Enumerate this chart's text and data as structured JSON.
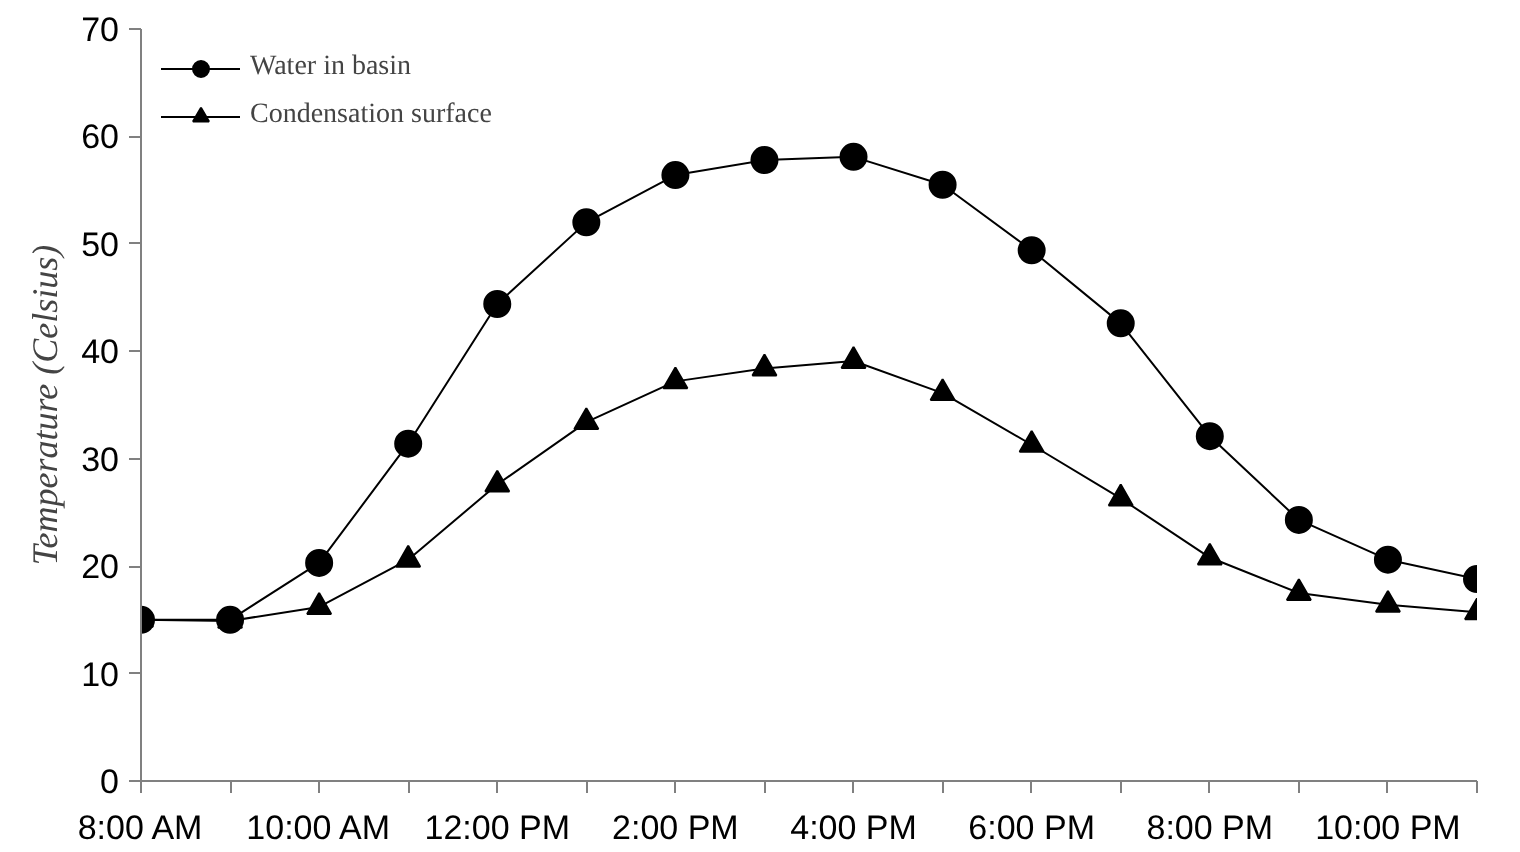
{
  "chart_data": {
    "type": "line",
    "ylabel": "Temperature (Celsius)",
    "x": [
      8,
      9,
      10,
      11,
      12,
      13,
      14,
      15,
      16,
      17,
      18,
      19,
      20,
      21,
      22,
      23
    ],
    "xlim": [
      8,
      23
    ],
    "xticks": [
      {
        "value": 8,
        "label": "8:00 AM"
      },
      {
        "value": 9,
        "label": null
      },
      {
        "value": 10,
        "label": "10:00 AM"
      },
      {
        "value": 11,
        "label": null
      },
      {
        "value": 12,
        "label": "12:00 PM"
      },
      {
        "value": 13,
        "label": null
      },
      {
        "value": 14,
        "label": "2:00 PM"
      },
      {
        "value": 15,
        "label": null
      },
      {
        "value": 16,
        "label": "4:00 PM"
      },
      {
        "value": 17,
        "label": null
      },
      {
        "value": 18,
        "label": "6:00 PM"
      },
      {
        "value": 19,
        "label": null
      },
      {
        "value": 20,
        "label": "8:00 PM"
      },
      {
        "value": 21,
        "label": null
      },
      {
        "value": 22,
        "label": "10:00 PM"
      },
      {
        "value": 23,
        "label": null
      }
    ],
    "ylim": [
      0,
      70
    ],
    "yticks": [
      0,
      10,
      20,
      30,
      40,
      50,
      60,
      70
    ],
    "grid": false,
    "legend": "top left",
    "line_style": "solid",
    "series": [
      {
        "name": "Water in basin",
        "color": "#000000",
        "marker": "circle",
        "values": [
          15,
          15,
          20.3,
          31.4,
          44.4,
          52.0,
          56.4,
          57.8,
          58.1,
          55.5,
          49.4,
          42.6,
          32.1,
          24.3,
          20.6,
          18.8
        ]
      },
      {
        "name": "Condensation surface",
        "color": "#000000",
        "marker": "triangle",
        "values": [
          15,
          14.9,
          16.2,
          20.6,
          27.6,
          33.4,
          37.2,
          38.4,
          39.1,
          36.1,
          31.3,
          26.3,
          20.8,
          17.5,
          16.4,
          15.7
        ]
      }
    ]
  }
}
